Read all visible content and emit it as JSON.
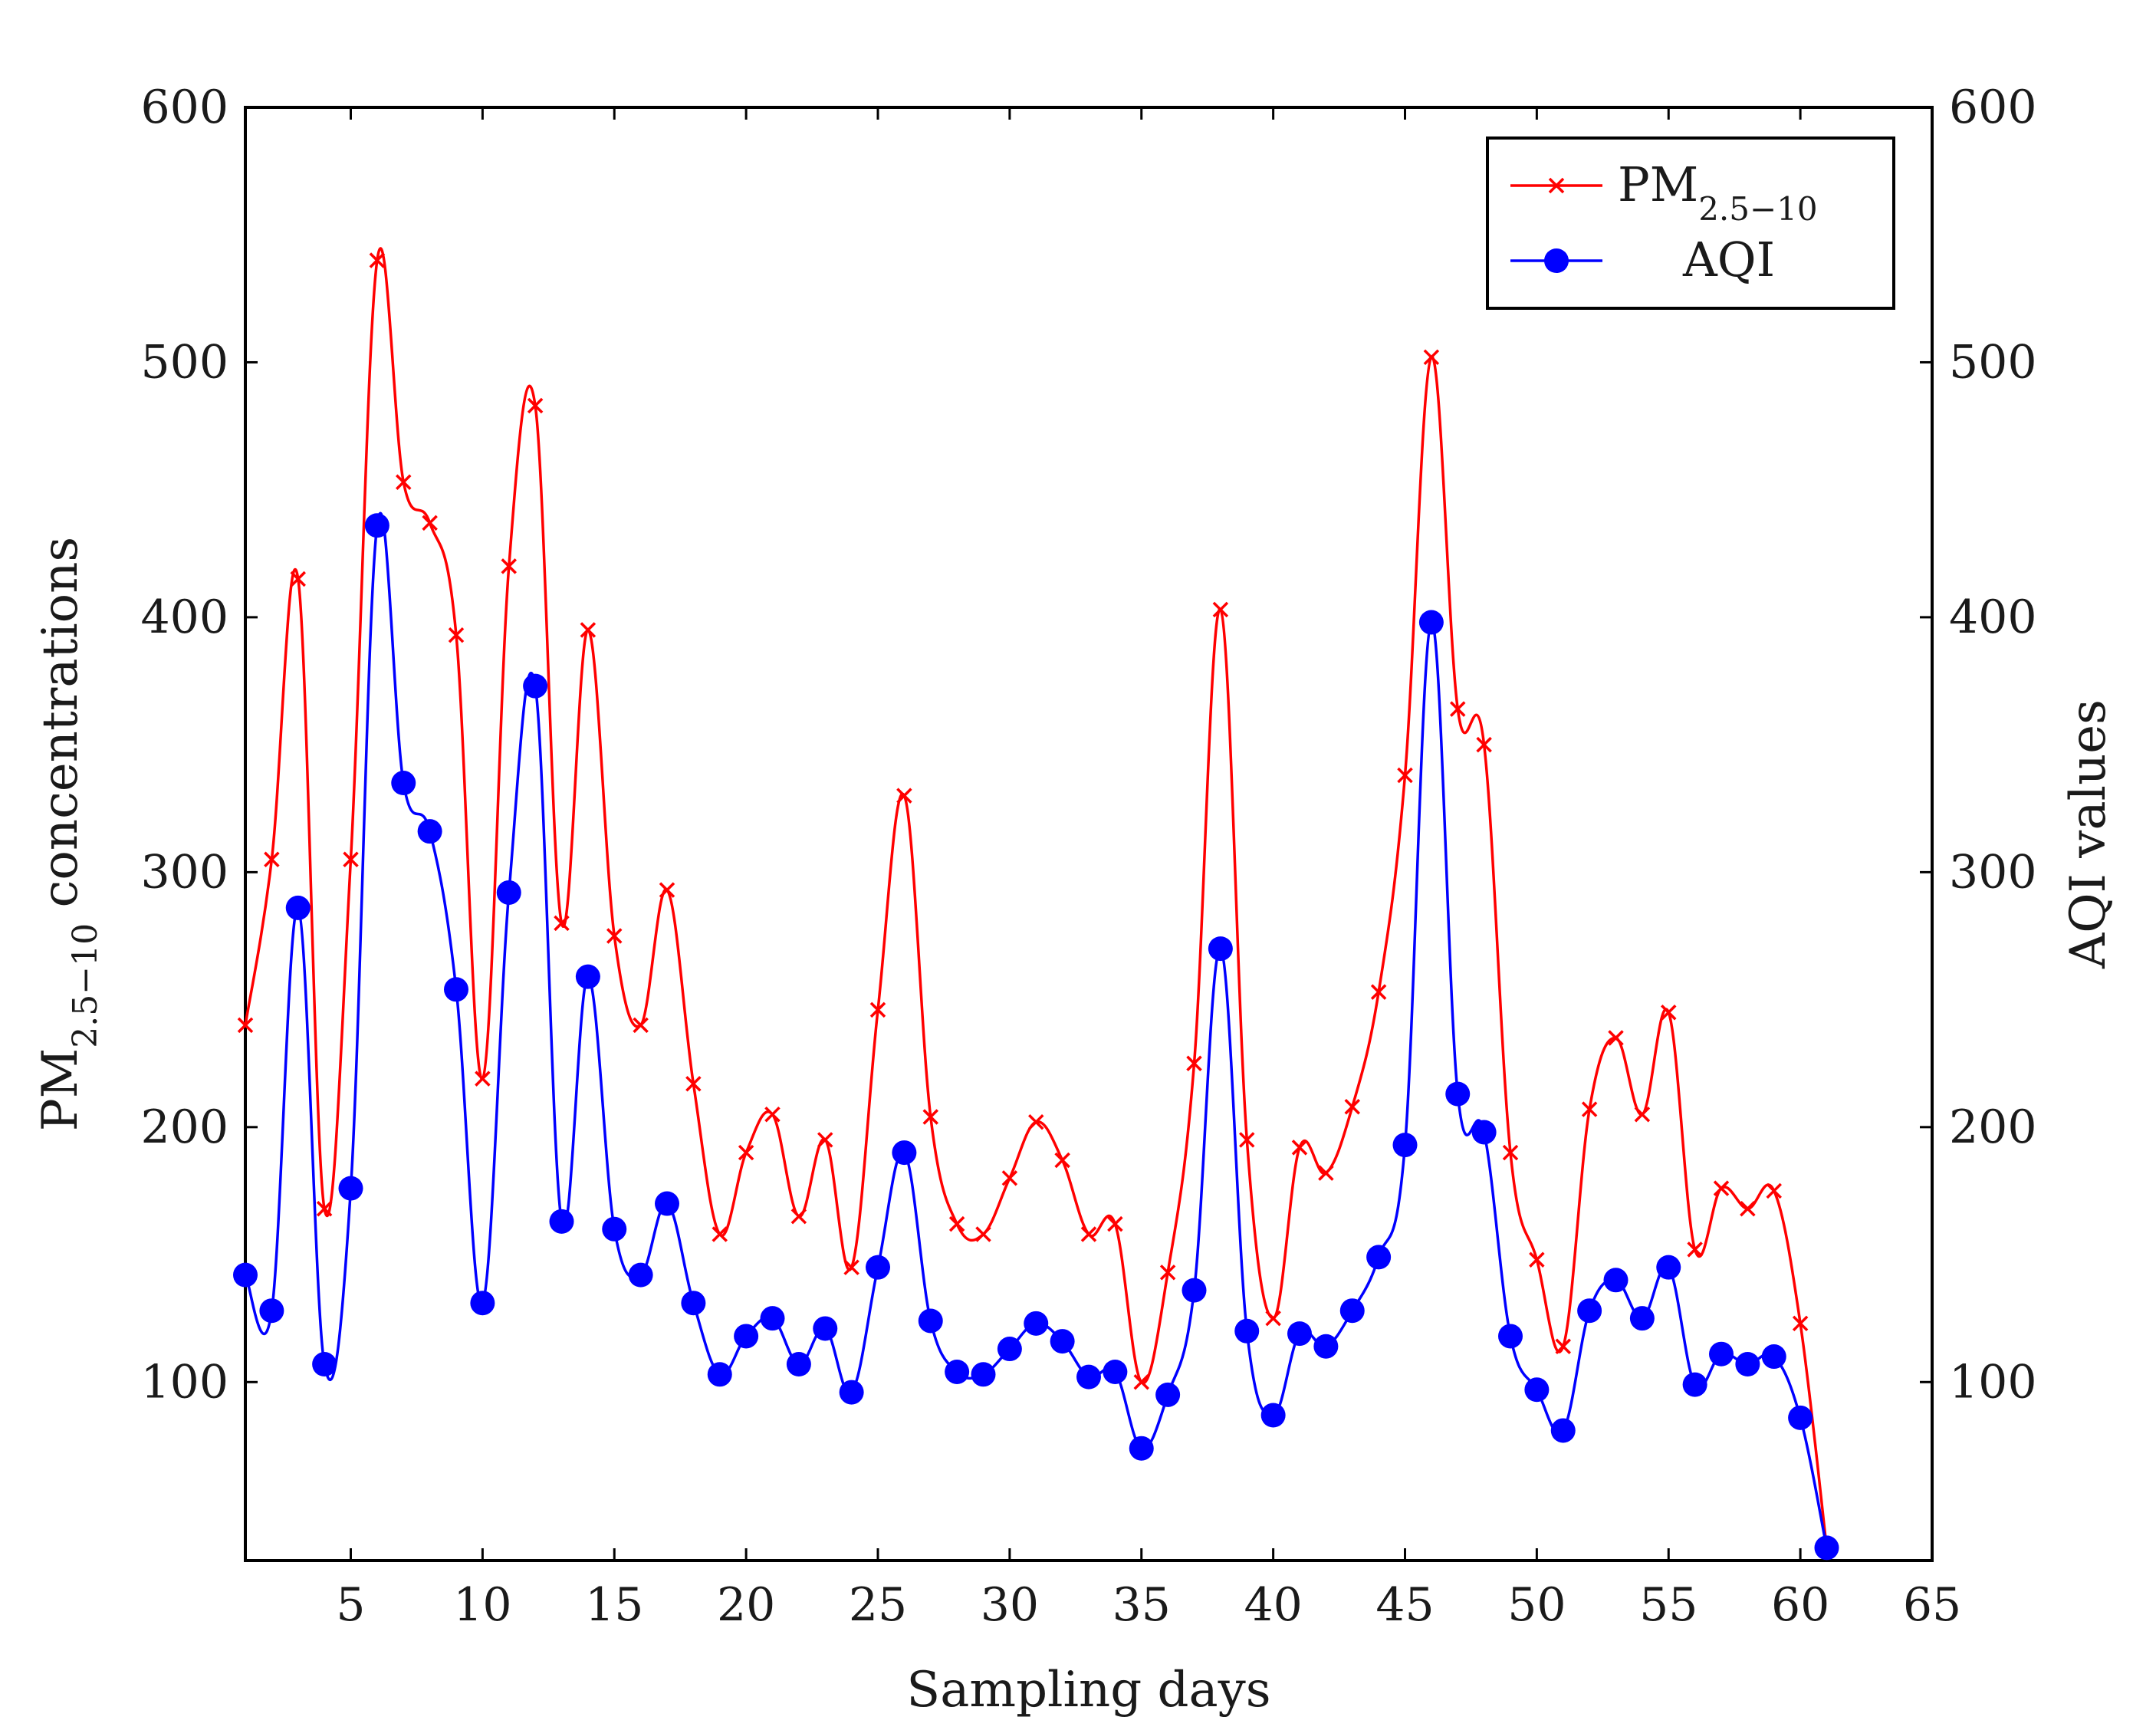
{
  "chart_data": {
    "type": "line",
    "title": "",
    "xlabel": "Sampling days",
    "ylabel_left": {
      "main": "PM",
      "sub": "2.5−10",
      "rest": " concentrations"
    },
    "ylabel_right": "AQI values",
    "xlim": [
      1,
      65
    ],
    "ylim_left": [
      30,
      600
    ],
    "ylim_right": [
      30,
      600
    ],
    "x_ticks": [
      5,
      10,
      15,
      20,
      25,
      30,
      35,
      40,
      45,
      50,
      55,
      60,
      65
    ],
    "y_ticks_left": [
      100,
      200,
      300,
      400,
      500,
      600
    ],
    "y_ticks_right": [
      100,
      200,
      300,
      400,
      500,
      600
    ],
    "grid": false,
    "legend_position": "top-right",
    "x": [
      1,
      2,
      3,
      4,
      5,
      6,
      7,
      8,
      9,
      10,
      11,
      12,
      13,
      14,
      15,
      16,
      17,
      18,
      19,
      20,
      21,
      22,
      23,
      24,
      25,
      26,
      27,
      28,
      29,
      30,
      31,
      32,
      33,
      34,
      35,
      36,
      37,
      38,
      39,
      40,
      41,
      42,
      43,
      44,
      45,
      46,
      47,
      48,
      49,
      50,
      51,
      52,
      53,
      54,
      55,
      56,
      57,
      58,
      59,
      60,
      61
    ],
    "series": [
      {
        "name": {
          "main": "PM",
          "sub": "2.5−10"
        },
        "color": "#ff0000",
        "marker": "x",
        "axis": "left",
        "values": [
          240,
          305,
          415,
          168,
          305,
          540,
          453,
          437,
          393,
          219,
          420,
          483,
          280,
          395,
          275,
          240,
          293,
          217,
          158,
          190,
          205,
          165,
          195,
          145,
          246,
          330,
          204,
          162,
          158,
          180,
          202,
          187,
          158,
          162,
          100,
          143,
          225,
          403,
          195,
          125,
          192,
          182,
          208,
          253,
          338,
          502,
          364,
          350,
          190,
          148,
          114,
          207,
          235,
          205,
          245,
          152,
          176,
          168,
          175,
          123,
          35
        ]
      },
      {
        "name": "AQI",
        "color": "#0000ff",
        "marker": "circle",
        "axis": "right",
        "values": [
          142,
          128,
          286,
          107,
          176,
          436,
          335,
          316,
          254,
          131,
          292,
          373,
          163,
          259,
          160,
          142,
          170,
          131,
          103,
          118,
          125,
          107,
          121,
          96,
          145,
          190,
          124,
          104,
          103,
          113,
          123,
          116,
          102,
          104,
          74,
          95,
          136,
          270,
          120,
          87,
          119,
          114,
          128,
          149,
          193,
          398,
          213,
          198,
          118,
          97,
          81,
          128,
          140,
          125,
          145,
          99,
          111,
          107,
          110,
          86,
          35
        ]
      }
    ]
  }
}
